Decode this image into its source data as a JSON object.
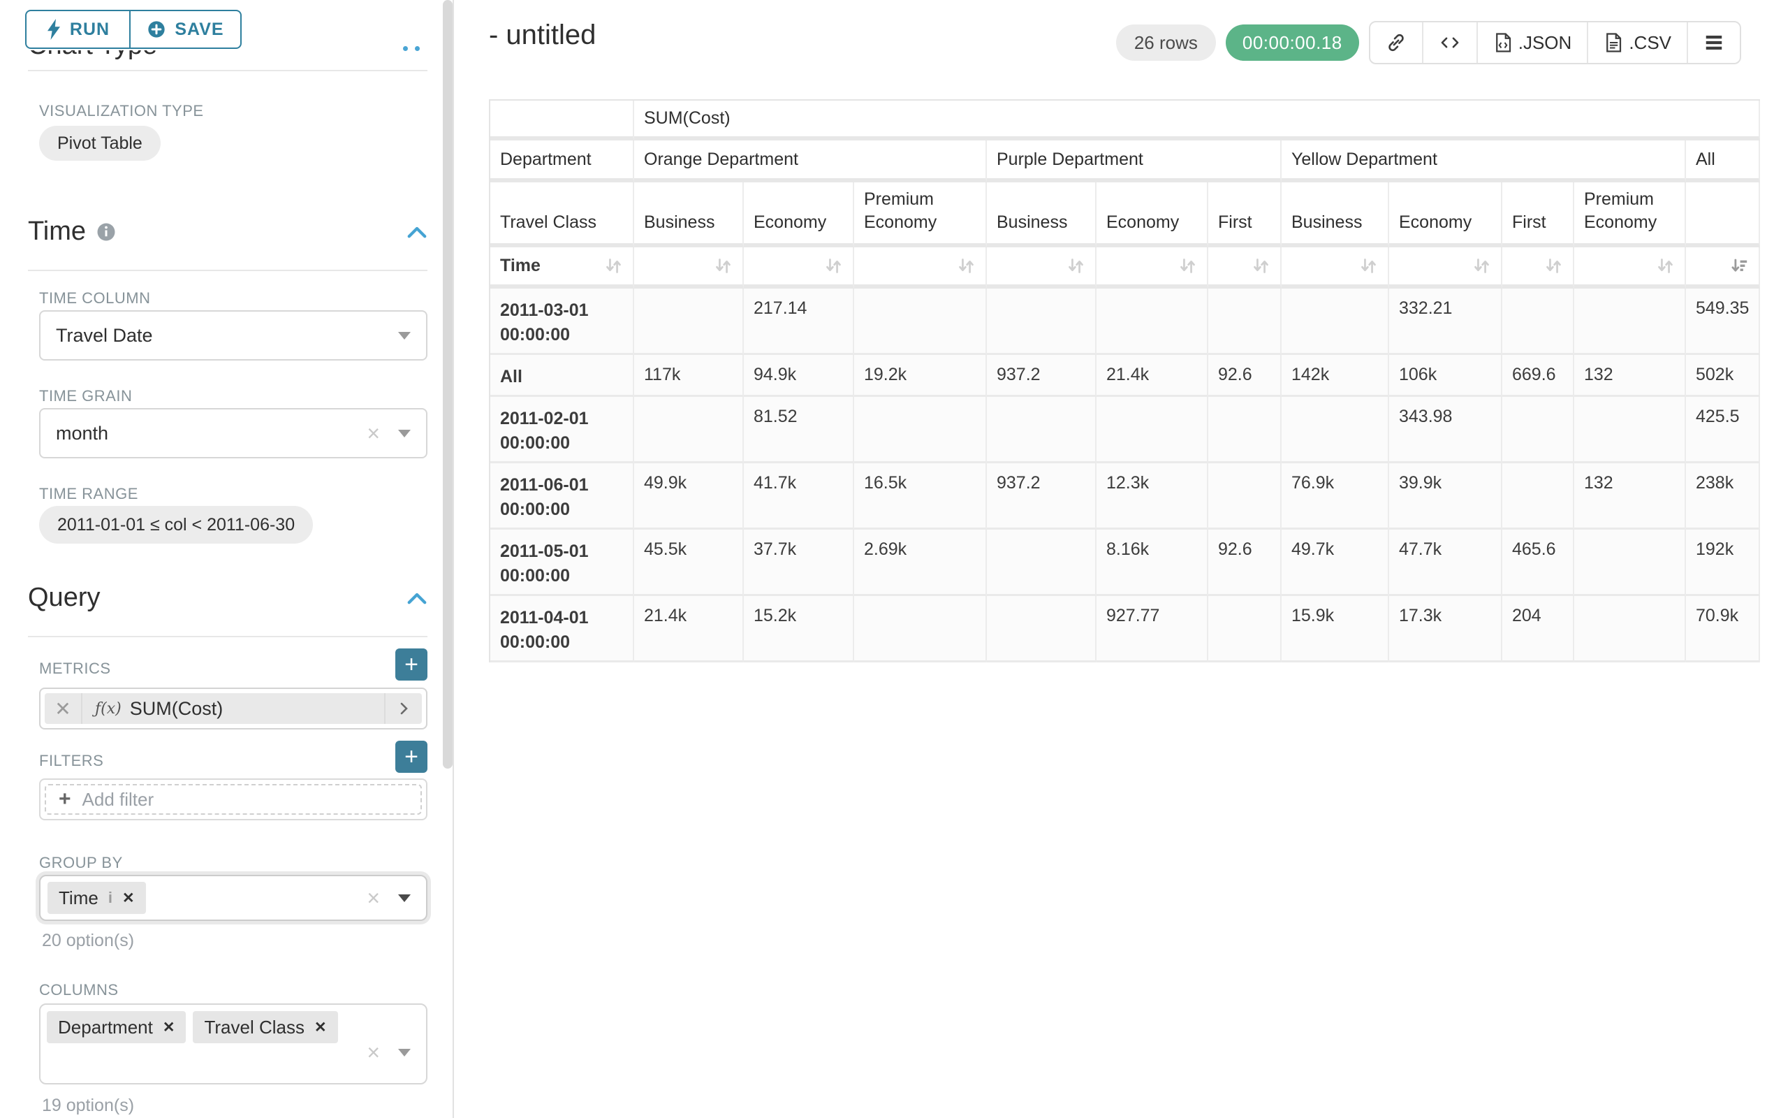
{
  "colors": {
    "button_teal": "#2e7f9e",
    "plus_button_teal": "#3d7e99",
    "timer_green": "#5cb488",
    "section_chevron_blue": "#45a3d3"
  },
  "sidebar": {
    "run_label": "RUN",
    "save_label": "SAVE",
    "chart_type_heading": "Chart Type",
    "viz_type_label": "VISUALIZATION TYPE",
    "viz_type_value": "Pivot Table",
    "time": {
      "heading": "Time",
      "time_column_label": "TIME COLUMN",
      "time_column_value": "Travel Date",
      "time_grain_label": "TIME GRAIN",
      "time_grain_value": "month",
      "time_range_label": "TIME RANGE",
      "time_range_value": "2011-01-01 ≤ col < 2011-06-30"
    },
    "query": {
      "heading": "Query",
      "metrics_label": "METRICS",
      "metric_fx": "ƒ(x)",
      "metric_value": "SUM(Cost)",
      "filters_label": "FILTERS",
      "add_filter_label": "Add filter",
      "group_by_label": "GROUP BY",
      "group_by_tags": [
        "Time"
      ],
      "group_by_options_note": "20 option(s)",
      "columns_label": "COLUMNS",
      "columns_tags": [
        "Department",
        "Travel Class"
      ],
      "columns_options_note": "19 option(s)"
    }
  },
  "header": {
    "title": "- untitled",
    "row_count": "26 rows",
    "timer": "00:00:00.18",
    "export_json_label": ".JSON",
    "export_csv_label": ".CSV"
  },
  "chart_data": {
    "type": "table",
    "metric_label": "SUM(Cost)",
    "corner_labels": [
      "Department",
      "Travel Class",
      "Time"
    ],
    "column_groups": [
      {
        "label": "Orange Department",
        "columns": [
          "Business",
          "Economy",
          "Premium Economy"
        ]
      },
      {
        "label": "Purple Department",
        "columns": [
          "Business",
          "Economy",
          "First"
        ]
      },
      {
        "label": "Yellow Department",
        "columns": [
          "Business",
          "Economy",
          "First",
          "Premium Economy"
        ]
      },
      {
        "label": "All",
        "columns": [
          ""
        ]
      }
    ],
    "rows": [
      {
        "label": "2011-03-01 00:00:00",
        "values": [
          "",
          "217.14",
          "",
          "",
          "",
          "",
          "",
          "332.21",
          "",
          "",
          "549.35"
        ]
      },
      {
        "label": "All",
        "values": [
          "117k",
          "94.9k",
          "19.2k",
          "937.2",
          "21.4k",
          "92.6",
          "142k",
          "106k",
          "669.6",
          "132",
          "502k"
        ]
      },
      {
        "label": "2011-02-01 00:00:00",
        "values": [
          "",
          "81.52",
          "",
          "",
          "",
          "",
          "",
          "343.98",
          "",
          "",
          "425.5"
        ]
      },
      {
        "label": "2011-06-01 00:00:00",
        "values": [
          "49.9k",
          "41.7k",
          "16.5k",
          "937.2",
          "12.3k",
          "",
          "76.9k",
          "39.9k",
          "",
          "132",
          "238k"
        ]
      },
      {
        "label": "2011-05-01 00:00:00",
        "values": [
          "45.5k",
          "37.7k",
          "2.69k",
          "",
          "8.16k",
          "92.6",
          "49.7k",
          "47.7k",
          "465.6",
          "",
          "192k"
        ]
      },
      {
        "label": "2011-04-01 00:00:00",
        "values": [
          "21.4k",
          "15.2k",
          "",
          "",
          "927.77",
          "",
          "15.9k",
          "17.3k",
          "204",
          "",
          "70.9k"
        ]
      }
    ],
    "sorted_column": "All",
    "sort_direction": "descending"
  }
}
